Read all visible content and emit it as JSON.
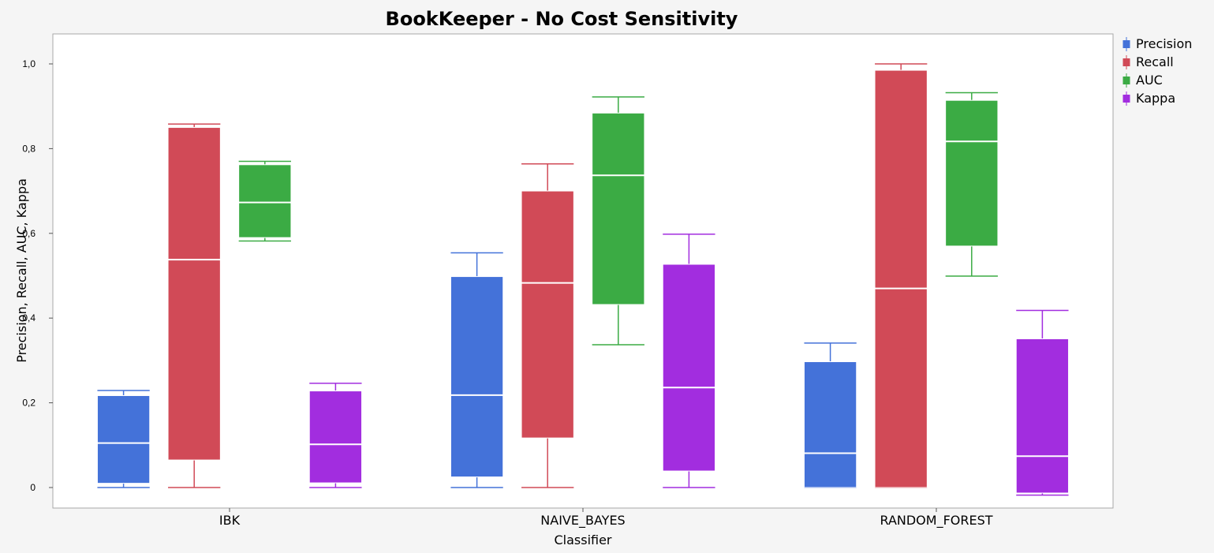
{
  "chart_data": {
    "type": "box",
    "title": "BookKeeper - No Cost Sensitivity",
    "xlabel": "Classifier",
    "ylabel": "Precision, Recall, AUC, Kappa",
    "ylim": [
      -0.07,
      1.07
    ],
    "yticks": [
      0,
      0.2,
      0.4,
      0.6,
      0.8,
      1.0
    ],
    "ytick_labels": [
      "0",
      "0,2",
      "0,4",
      "0,6",
      "0,8",
      "1,0"
    ],
    "categories": [
      "IBK",
      "NAIVE_BAYES",
      "RANDOM_FOREST"
    ],
    "legend_position": "right-top",
    "series": [
      {
        "name": "Precision",
        "color": "#4472d9",
        "boxes": [
          {
            "whisker_low": 0.0,
            "q1": 0.01,
            "median": 0.105,
            "q3": 0.217,
            "whisker_high": 0.229
          },
          {
            "whisker_low": 0.0,
            "q1": 0.025,
            "median": 0.218,
            "q3": 0.498,
            "whisker_high": 0.554
          },
          {
            "whisker_low": 0.0,
            "q1": 0.0,
            "median": 0.081,
            "q3": 0.297,
            "whisker_high": 0.341
          }
        ]
      },
      {
        "name": "Recall",
        "color": "#d14a57",
        "boxes": [
          {
            "whisker_low": 0.0,
            "q1": 0.065,
            "median": 0.538,
            "q3": 0.85,
            "whisker_high": 0.858
          },
          {
            "whisker_low": 0.0,
            "q1": 0.117,
            "median": 0.483,
            "q3": 0.7,
            "whisker_high": 0.764
          },
          {
            "whisker_low": 0.0,
            "q1": 0.0,
            "median": 0.47,
            "q3": 0.985,
            "whisker_high": 1.0
          }
        ]
      },
      {
        "name": "AUC",
        "color": "#3bab44",
        "boxes": [
          {
            "whisker_low": 0.582,
            "q1": 0.59,
            "median": 0.673,
            "q3": 0.762,
            "whisker_high": 0.77
          },
          {
            "whisker_low": 0.337,
            "q1": 0.432,
            "median": 0.737,
            "q3": 0.884,
            "whisker_high": 0.922
          },
          {
            "whisker_low": 0.499,
            "q1": 0.57,
            "median": 0.817,
            "q3": 0.914,
            "whisker_high": 0.932
          }
        ]
      },
      {
        "name": "Kappa",
        "color": "#a22ddf",
        "boxes": [
          {
            "whisker_low": 0.0,
            "q1": 0.011,
            "median": 0.102,
            "q3": 0.228,
            "whisker_high": 0.246
          },
          {
            "whisker_low": 0.0,
            "q1": 0.039,
            "median": 0.236,
            "q3": 0.527,
            "whisker_high": 0.598
          },
          {
            "whisker_low": -0.018,
            "q1": -0.013,
            "median": 0.074,
            "q3": 0.351,
            "whisker_high": 0.418
          }
        ]
      }
    ]
  }
}
